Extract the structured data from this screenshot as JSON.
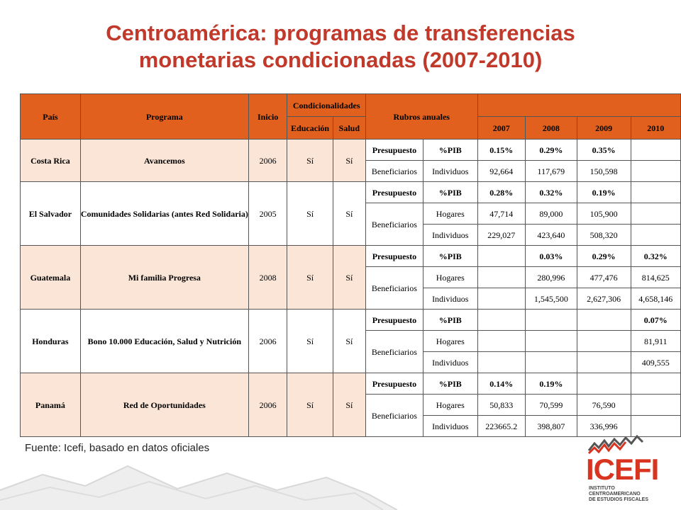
{
  "title": {
    "line1": "Centroamérica: programas de transferencias",
    "line2": "monetarias condicionadas (2007-2010)"
  },
  "headers": {
    "pais": "País",
    "programa": "Programa",
    "inicio": "Inicio",
    "condicionalidades": "Condicionalidades",
    "educacion": "Educación",
    "salud": "Salud",
    "rubros": "Rubros anuales",
    "y2007": "2007",
    "y2008": "2008",
    "y2009": "2009",
    "y2010": "2010"
  },
  "countries": [
    {
      "pais": "Costa Rica",
      "programa": "Avancemos",
      "inicio": "2006",
      "educacion": "Sí",
      "salud": "Sí",
      "presupuesto": {
        "label": "Presupuesto",
        "unit": "%PIB",
        "values": [
          "0.15%",
          "0.29%",
          "0.35%",
          ""
        ]
      },
      "beneficiarios_label": "Beneficiarios",
      "rows": [
        {
          "unit": "Individuos",
          "values": [
            "92,664",
            "117,679",
            "150,598",
            ""
          ]
        }
      ]
    },
    {
      "pais": "El Salvador",
      "programa": "Comunidades Solidarias (antes Red Solidaria)",
      "inicio": "2005",
      "educacion": "Sí",
      "salud": "Sí",
      "presupuesto": {
        "label": "Presupuesto",
        "unit": "%PIB",
        "values": [
          "0.28%",
          "0.32%",
          "0.19%",
          ""
        ]
      },
      "beneficiarios_label": "Beneficiarios",
      "rows": [
        {
          "unit": "Hogares",
          "values": [
            "47,714",
            "89,000",
            "105,900",
            ""
          ]
        },
        {
          "unit": "Individuos",
          "values": [
            "229,027",
            "423,640",
            "508,320",
            ""
          ]
        }
      ]
    },
    {
      "pais": "Guatemala",
      "programa": "Mi familia Progresa",
      "inicio": "2008",
      "educacion": "Sí",
      "salud": "Sí",
      "presupuesto": {
        "label": "Presupuesto",
        "unit": "%PIB",
        "values": [
          "",
          "0.03%",
          "0.29%",
          "0.32%"
        ]
      },
      "beneficiarios_label": "Beneficiarios",
      "rows": [
        {
          "unit": "Hogares",
          "values": [
            "",
            "280,996",
            "477,476",
            "814,625"
          ]
        },
        {
          "unit": "Individuos",
          "values": [
            "",
            "1,545,500",
            "2,627,306",
            "4,658,146"
          ]
        }
      ]
    },
    {
      "pais": "Honduras",
      "programa": "Bono 10.000 Educación, Salud y Nutrición",
      "inicio": "2006",
      "educacion": "Sí",
      "salud": "Sí",
      "presupuesto": {
        "label": "Presupuesto",
        "unit": "%PIB",
        "values": [
          "",
          "",
          "",
          "0.07%"
        ]
      },
      "beneficiarios_label": "Beneficiarios",
      "rows": [
        {
          "unit": "Hogares",
          "values": [
            "",
            "",
            "",
            "81,911"
          ]
        },
        {
          "unit": "Individuos",
          "values": [
            "",
            "",
            "",
            "409,555"
          ]
        }
      ]
    },
    {
      "pais": "Panamá",
      "programa": "Red de Oportunidades",
      "inicio": "2006",
      "educacion": "Sí",
      "salud": "Sí",
      "presupuesto": {
        "label": "Presupuesto",
        "unit": "%PIB",
        "values": [
          "0.14%",
          "0.19%",
          "",
          ""
        ]
      },
      "beneficiarios_label": "Beneficiarios",
      "rows": [
        {
          "unit": "Hogares",
          "values": [
            "50,833",
            "70,599",
            "76,590",
            ""
          ]
        },
        {
          "unit": "Individuos",
          "values": [
            "223665.2",
            "398,807",
            "336,996",
            ""
          ]
        }
      ]
    }
  ],
  "fuente": "Fuente:  Icefi, basado en datos oficiales",
  "logo": {
    "text": "ICEFI",
    "subtitle_line1": "INSTITUTO CENTROAMERICANO",
    "subtitle_line2": "DE ESTUDIOS FISCALES"
  },
  "colors": {
    "title": "#c0392b",
    "header": "#e2601d",
    "shaded_row": "#fbe5d6",
    "logo": "#d8341f"
  }
}
